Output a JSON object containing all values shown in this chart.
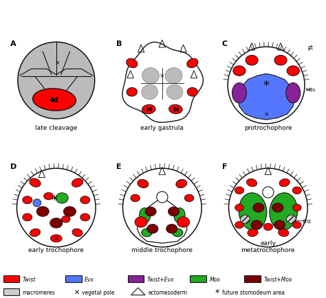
{
  "colors": {
    "red": "#FF0000",
    "blue": "#5577FF",
    "purple": "#882299",
    "green": "#22AA22",
    "darkred": "#7B0000",
    "gray": "#BBBBBB",
    "lightgray": "#CCCCCC",
    "outline": "#111111",
    "white": "#FFFFFF"
  },
  "panel_labels": [
    "A",
    "B",
    "C",
    "D",
    "E",
    "F"
  ],
  "subtitles": [
    "late cleavage",
    "early gastrula",
    "protrochophore",
    "early trochophore",
    "middle trochophore",
    "early\nmetatrochophore"
  ],
  "legend_row1": [
    {
      "color": "#FF0000",
      "label": "Twist"
    },
    {
      "color": "#5577FF",
      "label": "Evx"
    },
    {
      "color": "#882299",
      "label": "Twist+Evx"
    },
    {
      "color": "#22AA22",
      "label": "Mox"
    },
    {
      "color": "#7B0000",
      "label": "Twist+Mox"
    }
  ],
  "figsize": [
    4.74,
    4.35
  ],
  "dpi": 100
}
